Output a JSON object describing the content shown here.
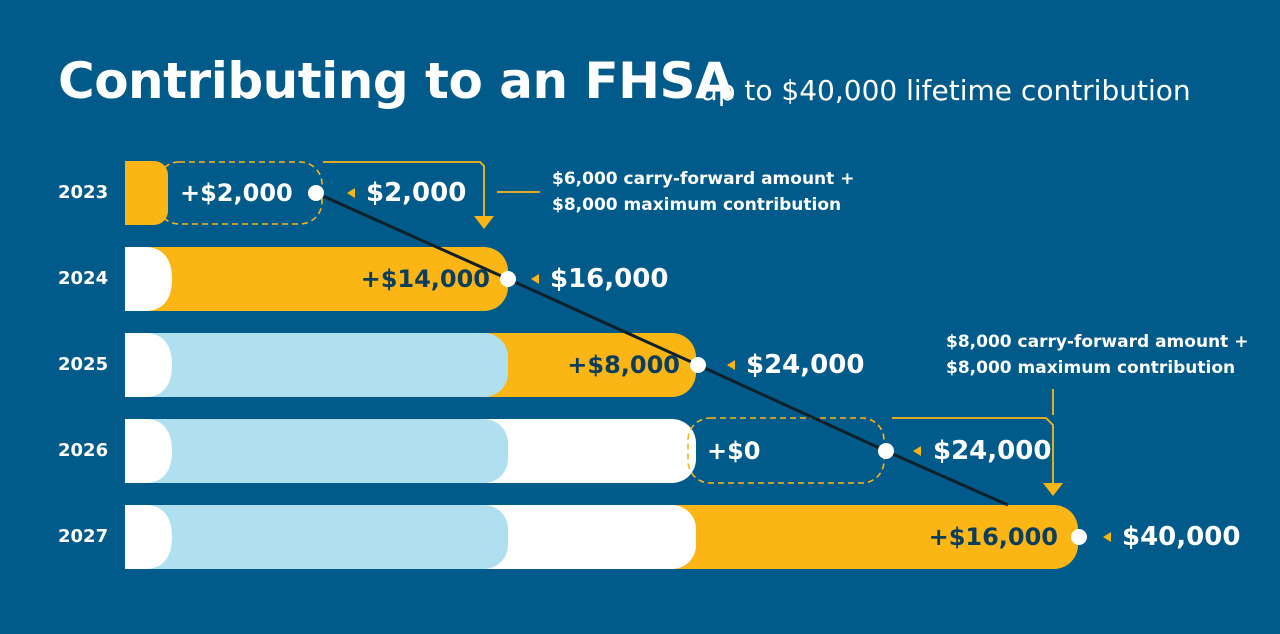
{
  "title": "Contributing to an FHSA",
  "subtitle": "up to $40,000 lifetime contribution",
  "colors": {
    "background": "#005b8a",
    "new_contribution": "#fbb616",
    "prior_total": "#ffffff",
    "earlier_total": "#b0dff0",
    "trend_line": "#10202b"
  },
  "rows": [
    {
      "year": "2023",
      "contribution": "+$2,000",
      "total": "$2,000"
    },
    {
      "year": "2024",
      "contribution": "+$14,000",
      "total": "$16,000"
    },
    {
      "year": "2025",
      "contribution": "+$8,000",
      "total": "$24,000"
    },
    {
      "year": "2026",
      "contribution": "+$0",
      "total": "$24,000"
    },
    {
      "year": "2027",
      "contribution": "+$16,000",
      "total": "$40,000"
    }
  ],
  "annotations": [
    {
      "line1": "$6,000 carry-forward amount +",
      "line2": "$8,000 maximum contribution"
    },
    {
      "line1": "$8,000 carry-forward amount +",
      "line2": "$8,000 maximum contribution"
    }
  ]
}
